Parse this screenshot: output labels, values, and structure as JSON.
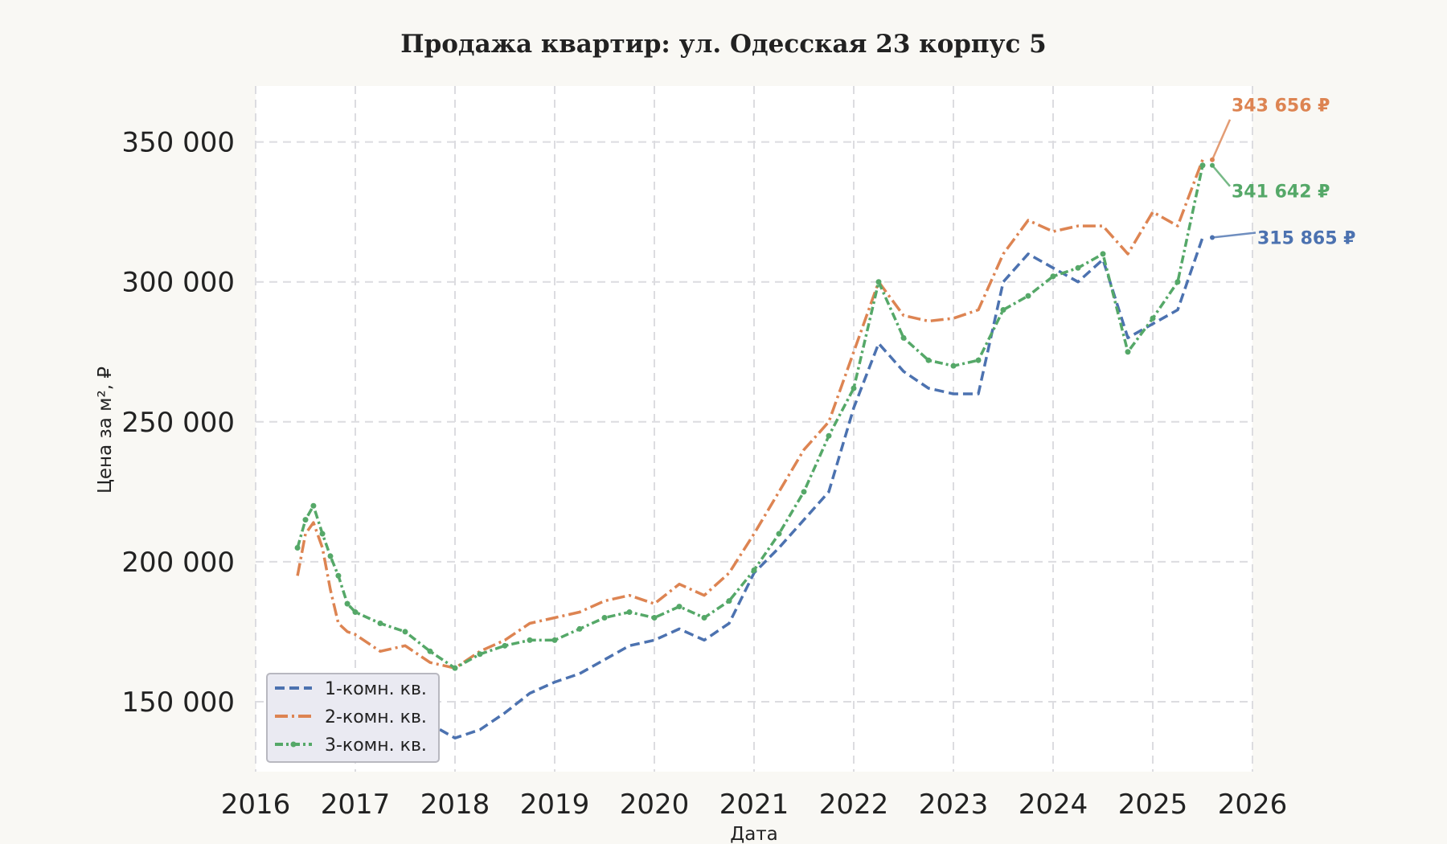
{
  "chart_data": {
    "type": "line",
    "title": "Продажа квартир: ул. Одесская 23 корпус 5",
    "xlabel": "Дата",
    "ylabel": "Цена за м², ₽",
    "xlim": [
      2016,
      2026
    ],
    "ylim": [
      125000,
      370000
    ],
    "x_ticks": [
      "2016",
      "2017",
      "2018",
      "2019",
      "2020",
      "2021",
      "2022",
      "2023",
      "2024",
      "2025",
      "2026"
    ],
    "y_ticks": [
      "150 000",
      "200 000",
      "250 000",
      "300 000",
      "350 000"
    ],
    "grid": true,
    "legend_position": "lower-left",
    "x": [
      2016.42,
      2016.5,
      2016.58,
      2016.67,
      2016.75,
      2016.83,
      2016.92,
      2017.0,
      2017.25,
      2017.5,
      2017.75,
      2018.0,
      2018.25,
      2018.5,
      2018.75,
      2019.0,
      2019.25,
      2019.5,
      2019.75,
      2020.0,
      2020.25,
      2020.5,
      2020.75,
      2021.0,
      2021.25,
      2021.5,
      2021.75,
      2022.0,
      2022.25,
      2022.5,
      2022.75,
      2023.0,
      2023.25,
      2023.5,
      2023.75,
      2024.0,
      2024.25,
      2024.5,
      2024.75,
      2025.0,
      2025.25,
      2025.5
    ],
    "series": [
      {
        "name": "1-комн. кв.",
        "color": "#4c72b0",
        "dash": "12 6",
        "values": [
          155000,
          157000,
          158000,
          155000,
          152000,
          150000,
          149000,
          150000,
          148000,
          146000,
          142000,
          137000,
          140000,
          146000,
          153000,
          157000,
          160000,
          165000,
          170000,
          172000,
          176000,
          172000,
          178000,
          196000,
          205000,
          215000,
          225000,
          255000,
          278000,
          268000,
          262000,
          260000,
          260000,
          300000,
          310000,
          305000,
          300000,
          308000,
          280000,
          285000,
          290000,
          315865
        ]
      },
      {
        "name": "2-комн. кв.",
        "color": "#dd8452",
        "dash": "16 5 3 5",
        "values": [
          195000,
          210000,
          214000,
          205000,
          190000,
          178000,
          175000,
          174000,
          168000,
          170000,
          164000,
          162000,
          168000,
          172000,
          178000,
          180000,
          182000,
          186000,
          188000,
          185000,
          192000,
          188000,
          196000,
          210000,
          225000,
          240000,
          250000,
          275000,
          300000,
          288000,
          286000,
          287000,
          290000,
          310000,
          322000,
          318000,
          320000,
          320000,
          310000,
          325000,
          320000,
          343656
        ]
      },
      {
        "name": "3-комн. кв.",
        "color": "#55a868",
        "dash": "10 4 3 4",
        "values": [
          205000,
          215000,
          220000,
          210000,
          202000,
          195000,
          185000,
          182000,
          178000,
          175000,
          168000,
          162000,
          167000,
          170000,
          172000,
          172000,
          176000,
          180000,
          182000,
          180000,
          184000,
          180000,
          186000,
          197000,
          210000,
          225000,
          245000,
          262000,
          300000,
          280000,
          272000,
          270000,
          272000,
          290000,
          295000,
          302000,
          305000,
          310000,
          275000,
          287000,
          300000,
          341642
        ]
      }
    ],
    "annotations": [
      {
        "text": "343 656 ₽",
        "series": "2-комн. кв.",
        "value": 343656
      },
      {
        "text": "341 642 ₽",
        "series": "3-комн. кв.",
        "value": 341642
      },
      {
        "text": "315 865 ₽",
        "series": "1-комн. кв.",
        "value": 315865
      }
    ]
  }
}
